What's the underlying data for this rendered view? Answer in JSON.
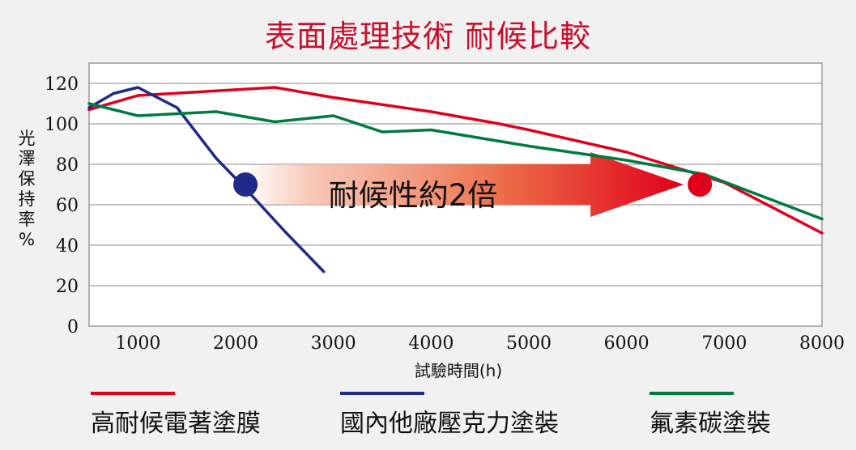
{
  "chart_data": {
    "type": "line",
    "title": "表面處理技術 耐候比較",
    "xlabel": "試驗時間(h)",
    "ylabel": "光澤保持率%",
    "xlim": [
      500,
      8000
    ],
    "ylim": [
      0,
      130
    ],
    "x_ticks": [
      1000,
      2000,
      3000,
      4000,
      5000,
      6000,
      7000,
      8000
    ],
    "y_ticks": [
      0,
      20,
      40,
      60,
      80,
      100,
      120
    ],
    "grid": true,
    "legend_position": "bottom",
    "series": [
      {
        "name": "高耐候電著塗膜",
        "color": "#e0001b",
        "points": [
          [
            500,
            107
          ],
          [
            1000,
            114
          ],
          [
            2400,
            118
          ],
          [
            3000,
            113
          ],
          [
            4000,
            106
          ],
          [
            4700,
            100
          ],
          [
            5000,
            97
          ],
          [
            6000,
            86
          ],
          [
            7000,
            71
          ],
          [
            8000,
            46
          ]
        ]
      },
      {
        "name": "國內他廠壓克力塗裝",
        "color": "#1f2a8a",
        "points": [
          [
            500,
            108
          ],
          [
            750,
            115
          ],
          [
            1000,
            118
          ],
          [
            1400,
            108
          ],
          [
            1800,
            83
          ],
          [
            2100,
            68
          ],
          [
            2500,
            47
          ],
          [
            2900,
            27
          ]
        ]
      },
      {
        "name": "氟素碳塗裝",
        "color": "#007a3d",
        "points": [
          [
            500,
            110
          ],
          [
            1000,
            104
          ],
          [
            1800,
            106
          ],
          [
            2400,
            101
          ],
          [
            3000,
            104
          ],
          [
            3500,
            96
          ],
          [
            4000,
            97
          ],
          [
            5000,
            89
          ],
          [
            6000,
            82
          ],
          [
            6800,
            75
          ],
          [
            8000,
            53
          ]
        ]
      }
    ],
    "annotations": {
      "text": "耐候性約2倍",
      "start_marker": {
        "x": 2100,
        "y": 70,
        "color": "#1f2a8a"
      },
      "end_marker": {
        "x": 6750,
        "y": 70,
        "color": "#e0001b"
      },
      "arrow_color": "#e0001b"
    }
  }
}
